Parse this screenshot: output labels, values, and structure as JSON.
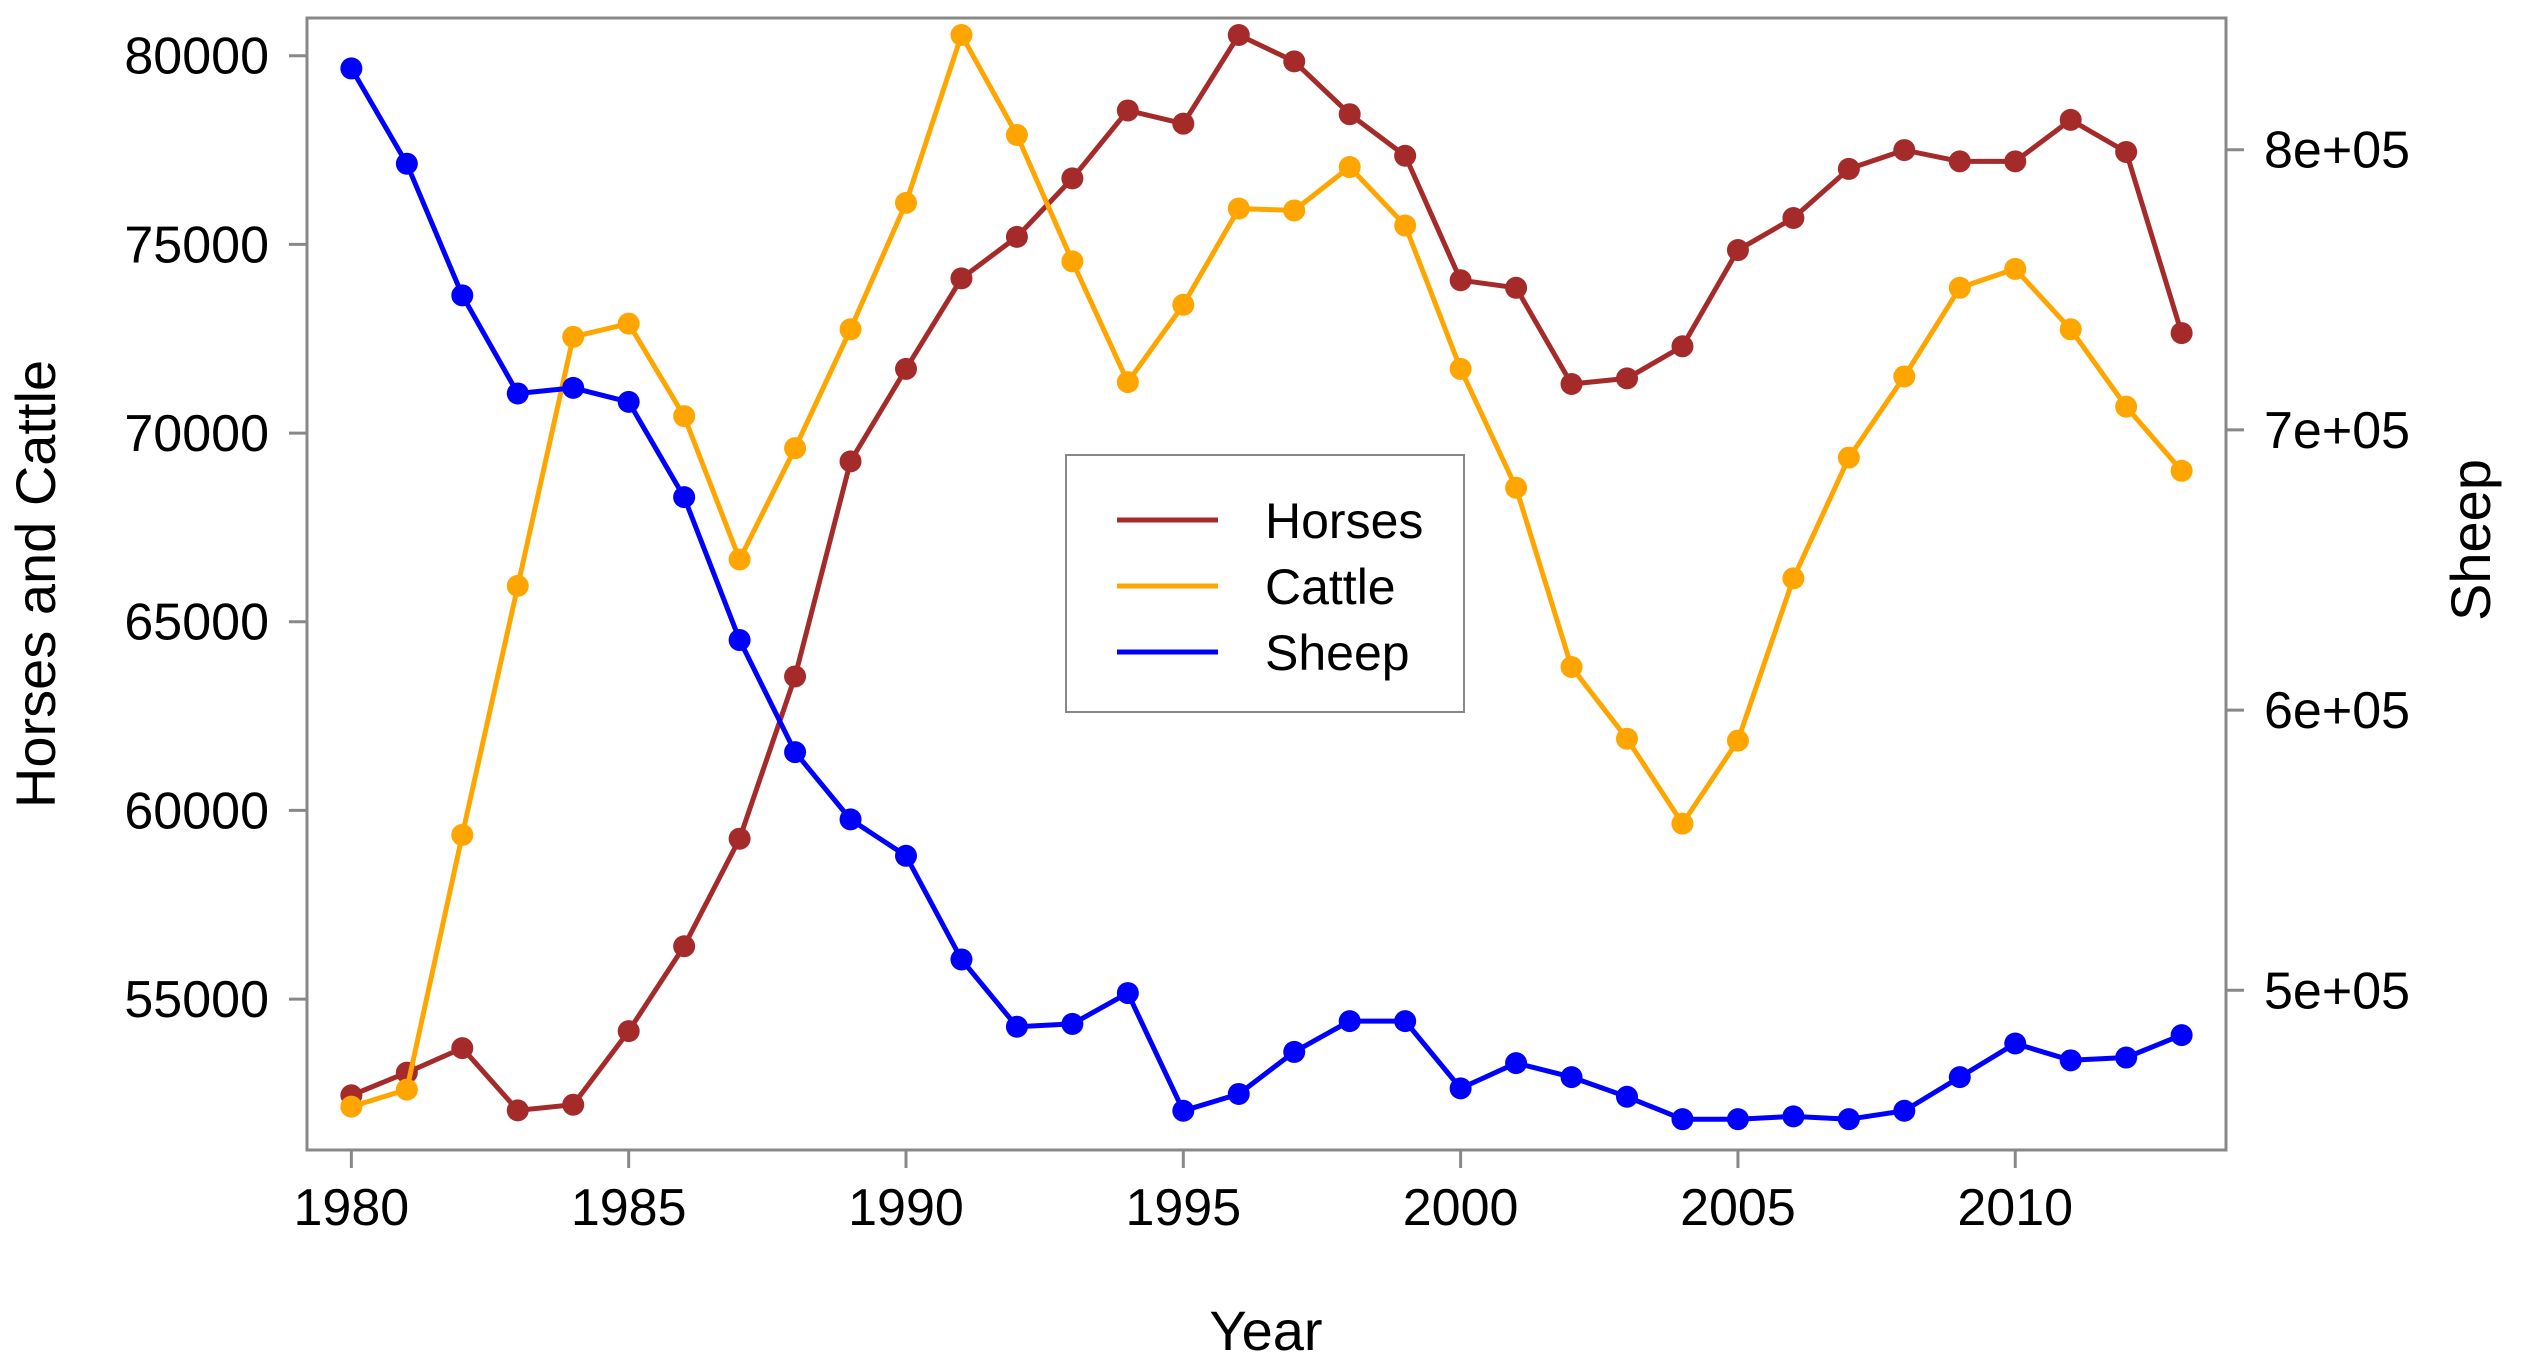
{
  "chart_data": {
    "type": "line",
    "title": "",
    "xlabel": "Year",
    "ylabel": "Horses and Cattle",
    "ylabel_right": "Sheep",
    "x": [
      1980,
      1981,
      1982,
      1983,
      1984,
      1985,
      1986,
      1987,
      1988,
      1989,
      1990,
      1991,
      1992,
      1993,
      1994,
      1995,
      1996,
      1997,
      1998,
      1999,
      2000,
      2001,
      2002,
      2003,
      2004,
      2005,
      2006,
      2007,
      2008,
      2009,
      2010,
      2011,
      2012,
      2013
    ],
    "xlim": [
      1979.2,
      2013.8
    ],
    "ylim": [
      51000,
      81000
    ],
    "ylim_right": [
      443000,
      847000
    ],
    "x_ticks": [
      1980,
      1985,
      1990,
      1995,
      2000,
      2005,
      2010
    ],
    "x_tick_labels": [
      "1980",
      "1985",
      "1990",
      "1995",
      "2000",
      "2005",
      "2010"
    ],
    "y_ticks": [
      55000,
      60000,
      65000,
      70000,
      75000,
      80000
    ],
    "y_tick_labels": [
      "55000",
      "60000",
      "65000",
      "70000",
      "75000",
      "80000"
    ],
    "y_ticks_right": [
      500000,
      600000,
      700000,
      800000
    ],
    "y_tick_labels_right": [
      "5e+05",
      "6e+05",
      "7e+05",
      "8e+05"
    ],
    "legend_position": "center",
    "series": [
      {
        "name": "Horses",
        "axis": "left",
        "color": "#A52A2A",
        "values": [
          52450,
          53050,
          53700,
          52050,
          52200,
          54150,
          56400,
          59250,
          63550,
          69250,
          71700,
          74100,
          75200,
          76750,
          78550,
          78200,
          80550,
          79850,
          78450,
          77350,
          74050,
          73850,
          71300,
          71450,
          72300,
          74850,
          75700,
          77000,
          77500,
          77200,
          77200,
          78300,
          77450,
          72650
        ]
      },
      {
        "name": "Cattle",
        "axis": "left",
        "color": "#FFA500",
        "values": [
          52150,
          52600,
          59350,
          65950,
          72550,
          72900,
          70450,
          66650,
          69600,
          72750,
          76100,
          80550,
          77900,
          74550,
          71350,
          73400,
          75950,
          75900,
          77050,
          75500,
          71700,
          68550,
          63800,
          61900,
          59650,
          61850,
          66150,
          69350,
          71500,
          73850,
          74350,
          72750,
          70700,
          69000
        ]
      },
      {
        "name": "Sheep",
        "axis": "right",
        "color": "#0000FF",
        "values": [
          829000,
          795000,
          748000,
          713000,
          715000,
          710000,
          676000,
          625000,
          585000,
          561000,
          548000,
          511000,
          487000,
          488000,
          499000,
          457000,
          463000,
          478000,
          489000,
          489000,
          465000,
          474000,
          469000,
          462000,
          454000,
          454000,
          455000,
          454000,
          457000,
          469000,
          481000,
          475000,
          476000,
          484000
        ]
      }
    ]
  }
}
